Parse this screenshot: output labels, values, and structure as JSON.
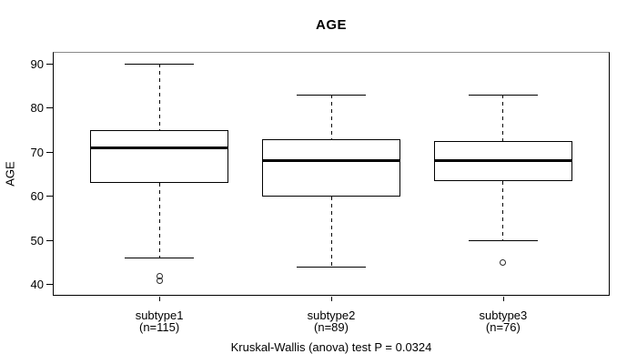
{
  "title": "AGE",
  "caption": "Kruskal-Wallis (anova) test P = 0.0324",
  "colors": {
    "line": "#000000",
    "box_fill": "#ffffff",
    "background": "#ffffff",
    "axis_frame": "#000000"
  },
  "chart_data": {
    "type": "boxplot",
    "title": "AGE",
    "ylabel": "AGE",
    "xlabel": "",
    "ylim": [
      37.5,
      92.7
    ],
    "yticks": [
      40,
      50,
      60,
      70,
      80,
      90
    ],
    "grid": false,
    "legend": "none",
    "footnote": "Kruskal-Wallis (anova) test P = 0.0324",
    "groups": [
      {
        "label": "subtype1",
        "sublabel": "(n=115)",
        "n": 115,
        "whisker_low": 46,
        "q1": 63,
        "median": 71,
        "q3": 75,
        "whisker_high": 90,
        "outliers": [
          42,
          41
        ]
      },
      {
        "label": "subtype2",
        "sublabel": "(n=89)",
        "n": 89,
        "whisker_low": 44,
        "q1": 60,
        "median": 68,
        "q3": 73,
        "whisker_high": 83,
        "outliers": []
      },
      {
        "label": "subtype3",
        "sublabel": "(n=76)",
        "n": 76,
        "whisker_low": 50,
        "q1": 63.5,
        "median": 68,
        "q3": 72.5,
        "whisker_high": 83,
        "outliers": [
          45
        ]
      }
    ]
  }
}
